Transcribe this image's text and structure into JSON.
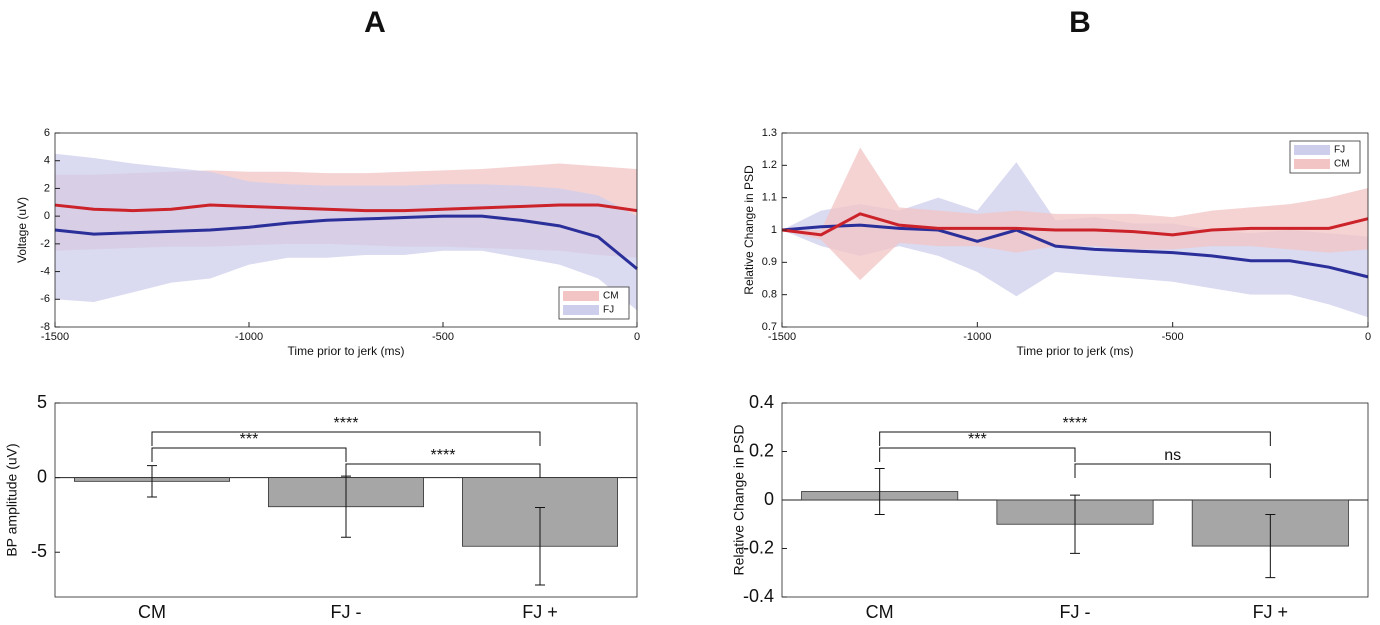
{
  "chart_data": [
    {
      "type": "line",
      "panel_label": "A",
      "xlabel": "Time prior to jerk (ms)",
      "ylabel": "Voltage (uV)",
      "x": [
        -1500,
        -1400,
        -1300,
        -1200,
        -1100,
        -1000,
        -900,
        -800,
        -700,
        -600,
        -500,
        -400,
        -300,
        -200,
        -100,
        0
      ],
      "xlim": [
        -1500,
        0
      ],
      "xticks": [
        -1500,
        -1000,
        -500,
        0
      ],
      "ylim": [
        -8,
        6
      ],
      "yticks": [
        -8,
        -6,
        -4,
        -2,
        0,
        2,
        4,
        6
      ],
      "legend": "lower right",
      "series": [
        {
          "name": "CM",
          "color": "#cc2229",
          "band_color": "#f2c4c4",
          "values": [
            0.8,
            0.5,
            0.4,
            0.5,
            0.8,
            0.7,
            0.6,
            0.5,
            0.4,
            0.4,
            0.5,
            0.6,
            0.7,
            0.8,
            0.8,
            0.4
          ],
          "lower": [
            -2.5,
            -2.4,
            -2.3,
            -2.2,
            -2.2,
            -2.1,
            -2.0,
            -2.0,
            -2.1,
            -2.2,
            -2.2,
            -2.3,
            -2.4,
            -2.5,
            -2.8,
            -3.0
          ],
          "upper": [
            3.0,
            3.0,
            3.1,
            3.2,
            3.3,
            3.2,
            3.2,
            3.1,
            3.1,
            3.2,
            3.3,
            3.4,
            3.6,
            3.8,
            3.6,
            3.4
          ]
        },
        {
          "name": "FJ",
          "color": "#2b2f9a",
          "band_color": "#cdcdec",
          "values": [
            -1.0,
            -1.3,
            -1.2,
            -1.1,
            -1.0,
            -0.8,
            -0.5,
            -0.3,
            -0.2,
            -0.1,
            0,
            0,
            -0.3,
            -0.7,
            -1.5,
            -3.8
          ],
          "lower": [
            -6.0,
            -6.2,
            -5.5,
            -4.8,
            -4.5,
            -3.5,
            -3.0,
            -3.0,
            -2.8,
            -2.8,
            -2.5,
            -2.5,
            -3.0,
            -3.5,
            -4.5,
            -6.8
          ],
          "upper": [
            4.5,
            4.2,
            3.8,
            3.5,
            3.2,
            2.5,
            2.3,
            2.2,
            2.2,
            2.2,
            2.3,
            2.3,
            2.2,
            2.0,
            1.5,
            0
          ]
        }
      ]
    },
    {
      "type": "line",
      "panel_label": "B",
      "xlabel": "Time prior to jerk (ms)",
      "ylabel": "Relative Change in PSD",
      "x": [
        -1500,
        -1400,
        -1300,
        -1200,
        -1100,
        -1000,
        -900,
        -800,
        -700,
        -600,
        -500,
        -400,
        -300,
        -200,
        -100,
        0
      ],
      "xlim": [
        -1500,
        0
      ],
      "xticks": [
        -1500,
        -1000,
        -500,
        0
      ],
      "ylim": [
        0.7,
        1.3
      ],
      "yticks": [
        0.7,
        0.8,
        0.9,
        1,
        1.1,
        1.2,
        1.3
      ],
      "legend": "upper right",
      "series": [
        {
          "name": "FJ",
          "color": "#2b2f9a",
          "band_color": "#cdcdec",
          "values": [
            1,
            1.01,
            1.015,
            1.005,
            1.0,
            0.965,
            1.0,
            0.95,
            0.94,
            0.935,
            0.93,
            0.92,
            0.905,
            0.905,
            0.885,
            0.855
          ],
          "lower": [
            1,
            0.95,
            0.92,
            0.95,
            0.92,
            0.87,
            0.795,
            0.87,
            0.86,
            0.85,
            0.84,
            0.82,
            0.8,
            0.8,
            0.77,
            0.73
          ],
          "upper": [
            1,
            1.06,
            1.08,
            1.06,
            1.1,
            1.06,
            1.21,
            1.03,
            1.04,
            1.02,
            1.02,
            1.0,
            0.99,
            1.0,
            0.99,
            0.98
          ]
        },
        {
          "name": "CM",
          "color": "#cc2229",
          "band_color": "#f2c4c4",
          "values": [
            1,
            0.985,
            1.05,
            1.015,
            1.005,
            1.005,
            1.005,
            1.0,
            1.0,
            0.995,
            0.985,
            1.0,
            1.005,
            1.005,
            1.005,
            1.035
          ],
          "lower": [
            1,
            0.97,
            0.845,
            0.96,
            0.95,
            0.95,
            0.93,
            0.95,
            0.95,
            0.94,
            0.94,
            0.95,
            0.95,
            0.94,
            0.93,
            0.94
          ],
          "upper": [
            1,
            1.0,
            1.255,
            1.07,
            1.06,
            1.05,
            1.06,
            1.05,
            1.05,
            1.05,
            1.04,
            1.06,
            1.07,
            1.08,
            1.1,
            1.13
          ]
        }
      ]
    },
    {
      "type": "bar",
      "ylabel": "BP amplitude (uV)",
      "categories": [
        "CM",
        "FJ -",
        "FJ +"
      ],
      "values": [
        -0.25,
        -1.95,
        -4.6
      ],
      "errors": [
        1.05,
        2.05,
        2.6
      ],
      "color": "#a6a6a6",
      "ylim": [
        -8,
        5
      ],
      "yticks": [
        -5,
        0,
        5
      ],
      "brackets": [
        {
          "between": [
            "CM",
            "FJ +"
          ],
          "label": "****"
        },
        {
          "between": [
            "CM",
            "FJ -"
          ],
          "label": "***"
        },
        {
          "between": [
            "FJ -",
            "FJ +"
          ],
          "label": "****"
        }
      ]
    },
    {
      "type": "bar",
      "ylabel": "Relative Change in PSD",
      "categories": [
        "CM",
        "FJ -",
        "FJ +"
      ],
      "values": [
        0.035,
        -0.1,
        -0.19
      ],
      "errors": [
        0.095,
        0.12,
        0.13
      ],
      "color": "#a6a6a6",
      "ylim": [
        -0.4,
        0.4
      ],
      "yticks": [
        -0.4,
        -0.2,
        0,
        0.2,
        0.4
      ],
      "brackets": [
        {
          "between": [
            "CM",
            "FJ +"
          ],
          "label": "****"
        },
        {
          "between": [
            "CM",
            "FJ -"
          ],
          "label": "***"
        },
        {
          "between": [
            "FJ -",
            "FJ +"
          ],
          "label": "ns"
        }
      ]
    }
  ]
}
